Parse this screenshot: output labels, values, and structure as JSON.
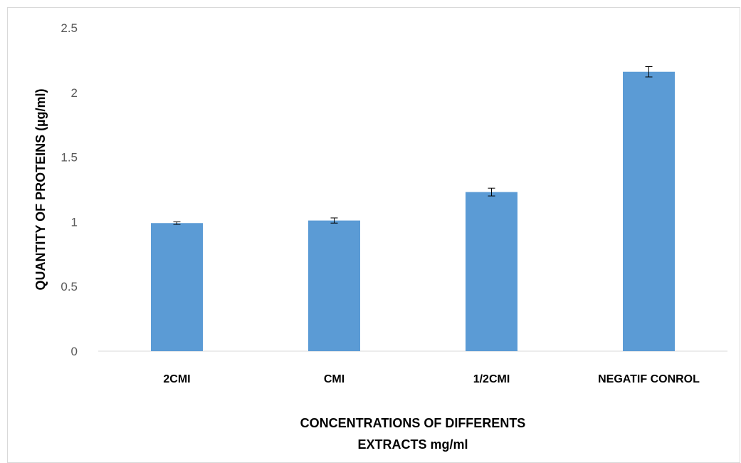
{
  "chart_data": {
    "type": "bar",
    "categories": [
      "2CMI",
      "CMI",
      "1/2CMI",
      "NEGATIF CONROL"
    ],
    "values": [
      0.99,
      1.01,
      1.23,
      2.16
    ],
    "error": [
      0.01,
      0.02,
      0.03,
      0.04
    ],
    "ylabel": "QUANTITY OF PROTEINS  (µg/ml)",
    "xlabel_lines": [
      "CONCENTRATIONS OF DIFFERENTS",
      "EXTRACTS mg/ml"
    ],
    "ylim": [
      0,
      2.5
    ],
    "yticks": [
      "0",
      "0.5",
      "1",
      "1.5",
      "2",
      "2.5"
    ],
    "grid": false,
    "bar_color": "#5b9bd5"
  }
}
